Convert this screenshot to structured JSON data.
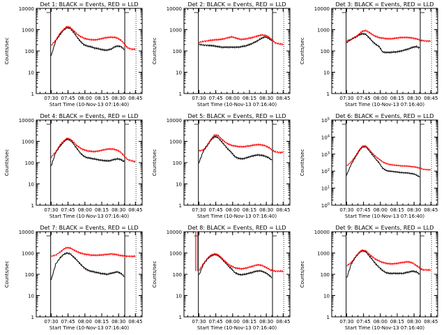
{
  "colors": {
    "events": "#000000",
    "lld": "#ff0000",
    "background": "#ffffff"
  },
  "chart_data": [
    {
      "type": "line",
      "title": "Det 1: BLACK = Events, RED = LLD",
      "xlabel": "Start Time (10-Nov-13 07:16:40)",
      "ylabel": "Counts/sec",
      "ylog": true,
      "ylim": [
        1,
        10000
      ],
      "y_tick_labels": [
        "1",
        "10",
        "100",
        "1000",
        "10000"
      ],
      "x_tick_labels": [
        "07:30",
        "07:45",
        "08:00",
        "08:15",
        "08:30",
        "08:45"
      ],
      "x": [
        "07:30",
        "07:34",
        "07:38",
        "07:41",
        "07:44",
        "07:47",
        "07:50",
        "07:53",
        "07:56",
        "07:59",
        "08:02",
        "08:05",
        "08:08",
        "08:11",
        "08:14",
        "08:17",
        "08:20",
        "08:23",
        "08:26",
        "08:29",
        "08:32",
        "08:35",
        "08:38",
        "08:42",
        "08:45"
      ],
      "series": [
        {
          "name": "Events",
          "values": [
            60,
            300,
            600,
            950,
            1250,
            1150,
            750,
            450,
            280,
            200,
            170,
            160,
            140,
            130,
            120,
            110,
            110,
            120,
            150,
            170,
            160,
            120,
            null,
            null,
            null
          ]
        },
        {
          "name": "LLD",
          "values": [
            180,
            320,
            700,
            1000,
            1400,
            1250,
            900,
            620,
            480,
            400,
            360,
            340,
            330,
            340,
            370,
            400,
            430,
            440,
            440,
            400,
            320,
            220,
            140,
            120,
            120
          ]
        }
      ]
    },
    {
      "type": "line",
      "title": "Det 2: BLACK = Events, RED = LLD",
      "xlabel": "Start Time (10-Nov-13 07:16:40)",
      "ylabel": "Counts/sec",
      "ylog": true,
      "ylim": [
        1,
        10000
      ],
      "y_tick_labels": [
        "1",
        "10",
        "100",
        "1000",
        "10000"
      ],
      "x_tick_labels": [
        "07:30",
        "07:45",
        "08:00",
        "08:15",
        "08:30",
        "08:45"
      ],
      "x": [
        "07:30",
        "07:34",
        "07:38",
        "07:41",
        "07:44",
        "07:47",
        "07:50",
        "07:53",
        "07:56",
        "07:59",
        "08:02",
        "08:05",
        "08:08",
        "08:11",
        "08:14",
        "08:17",
        "08:20",
        "08:23",
        "08:26",
        "08:29",
        "08:32",
        "08:35",
        "08:38",
        "08:42",
        "08:45"
      ],
      "series": [
        {
          "name": "Events",
          "values": [
            200,
            190,
            180,
            180,
            170,
            160,
            150,
            150,
            150,
            150,
            150,
            150,
            160,
            170,
            190,
            220,
            260,
            320,
            400,
            460,
            400,
            300,
            null,
            null,
            null
          ]
        },
        {
          "name": "LLD",
          "values": [
            250,
            280,
            300,
            320,
            330,
            340,
            350,
            380,
            420,
            460,
            420,
            370,
            350,
            360,
            390,
            420,
            460,
            520,
            560,
            540,
            460,
            330,
            240,
            210,
            210
          ]
        }
      ]
    },
    {
      "type": "line",
      "title": "Det 3: BLACK = Events, RED = LLD",
      "xlabel": "Start Time (10-Nov-13 07:16:40)",
      "ylabel": "Counts/sec",
      "ylog": true,
      "ylim": [
        1,
        10000
      ],
      "y_tick_labels": [
        "1",
        "10",
        "100",
        "1000",
        "10000"
      ],
      "x_tick_labels": [
        "07:30",
        "07:45",
        "08:00",
        "08:15",
        "08:30",
        "08:45"
      ],
      "x": [
        "07:30",
        "07:34",
        "07:38",
        "07:41",
        "07:44",
        "07:47",
        "07:50",
        "07:53",
        "07:56",
        "07:59",
        "08:02",
        "08:05",
        "08:08",
        "08:11",
        "08:14",
        "08:17",
        "08:20",
        "08:23",
        "08:26",
        "08:29",
        "08:32",
        "08:35",
        "08:38",
        "08:42",
        "08:45"
      ],
      "series": [
        {
          "name": "Events",
          "values": [
            250,
            350,
            450,
            560,
            650,
            600,
            420,
            280,
            200,
            160,
            90,
            85,
            85,
            88,
            90,
            95,
            105,
            115,
            130,
            150,
            160,
            140,
            null,
            null,
            null
          ]
        },
        {
          "name": "LLD",
          "values": [
            300,
            350,
            450,
            620,
            850,
            900,
            750,
            580,
            480,
            420,
            400,
            380,
            370,
            380,
            400,
            420,
            430,
            430,
            420,
            400,
            370,
            330,
            300,
            290,
            290
          ]
        }
      ]
    },
    {
      "type": "line",
      "title": "Det 4: BLACK = Events, RED = LLD",
      "xlabel": "Start Time (10-Nov-13 07:16:40)",
      "ylabel": "Counts/sec",
      "ylog": true,
      "ylim": [
        1,
        10000
      ],
      "y_tick_labels": [
        "1",
        "10",
        "100",
        "1000",
        "10000"
      ],
      "x_tick_labels": [
        "07:30",
        "07:45",
        "08:00",
        "08:15",
        "08:30",
        "08:45"
      ],
      "x": [
        "07:30",
        "07:34",
        "07:38",
        "07:41",
        "07:44",
        "07:47",
        "07:50",
        "07:53",
        "07:56",
        "07:59",
        "08:02",
        "08:05",
        "08:08",
        "08:11",
        "08:14",
        "08:17",
        "08:20",
        "08:23",
        "08:26",
        "08:29",
        "08:32",
        "08:35",
        "08:38",
        "08:42",
        "08:45"
      ],
      "series": [
        {
          "name": "Events",
          "values": [
            70,
            300,
            600,
            950,
            1250,
            1150,
            750,
            450,
            280,
            200,
            170,
            160,
            150,
            140,
            130,
            125,
            120,
            125,
            140,
            150,
            140,
            110,
            null,
            null,
            null
          ]
        },
        {
          "name": "LLD",
          "values": [
            180,
            320,
            700,
            1000,
            1400,
            1250,
            900,
            620,
            480,
            400,
            360,
            340,
            330,
            340,
            370,
            400,
            430,
            440,
            420,
            380,
            300,
            210,
            140,
            120,
            110
          ]
        }
      ]
    },
    {
      "type": "line",
      "title": "Det 5: BLACK = Events, RED = LLD",
      "xlabel": "Start Time (10-Nov-13 07:16:40)",
      "ylabel": "Counts/sec",
      "ylog": true,
      "ylim": [
        1,
        10000
      ],
      "y_tick_labels": [
        "1",
        "10",
        "100",
        "1000",
        "10000"
      ],
      "x_tick_labels": [
        "07:30",
        "07:45",
        "08:00",
        "08:15",
        "08:30",
        "08:45"
      ],
      "x": [
        "07:30",
        "07:34",
        "07:38",
        "07:41",
        "07:44",
        "07:47",
        "07:50",
        "07:53",
        "07:56",
        "07:59",
        "08:02",
        "08:05",
        "08:08",
        "08:11",
        "08:14",
        "08:17",
        "08:20",
        "08:23",
        "08:26",
        "08:29",
        "08:32",
        "08:35",
        "08:38",
        "08:42",
        "08:45"
      ],
      "series": [
        {
          "name": "Events",
          "values": [
            100,
            350,
            700,
            1200,
            1700,
            1500,
            1000,
            650,
            420,
            300,
            190,
            160,
            150,
            160,
            180,
            200,
            220,
            230,
            220,
            200,
            170,
            130,
            null,
            null,
            null
          ]
        },
        {
          "name": "LLD",
          "values": [
            350,
            400,
            750,
            1300,
            2000,
            1900,
            1300,
            950,
            750,
            650,
            600,
            570,
            550,
            570,
            600,
            640,
            680,
            700,
            680,
            620,
            520,
            400,
            320,
            300,
            300
          ]
        }
      ]
    },
    {
      "type": "line",
      "title": "Det 6: BLACK = Events, RED = LLD",
      "xlabel": "Start Time (10-Nov-13 07:16:40)",
      "ylabel": "Counts/sec",
      "ylog": true,
      "ylim": [
        1,
        100000
      ],
      "y_tick_labels": [
        "10^0",
        "10^1",
        "10^2",
        "10^3",
        "10^4",
        "10^5"
      ],
      "x_tick_labels": [
        "07:30",
        "07:45",
        "08:00",
        "08:15",
        "08:30",
        "08:45"
      ],
      "x": [
        "07:30",
        "07:34",
        "07:38",
        "07:41",
        "07:44",
        "07:47",
        "07:50",
        "07:53",
        "07:56",
        "07:59",
        "08:02",
        "08:05",
        "08:08",
        "08:11",
        "08:14",
        "08:17",
        "08:20",
        "08:23",
        "08:26",
        "08:29",
        "08:32",
        "08:35",
        "08:38",
        "08:42",
        "08:45"
      ],
      "series": [
        {
          "name": "Events",
          "values": [
            60,
            250,
            700,
            1500,
            2600,
            2700,
            1600,
            900,
            500,
            300,
            150,
            110,
            100,
            95,
            90,
            85,
            80,
            80,
            75,
            70,
            60,
            45,
            null,
            null,
            null
          ]
        },
        {
          "name": "LLD",
          "values": [
            200,
            350,
            800,
            1700,
            2900,
            3000,
            1900,
            1100,
            700,
            500,
            350,
            280,
            250,
            230,
            220,
            210,
            200,
            200,
            190,
            180,
            170,
            150,
            130,
            120,
            120
          ]
        }
      ]
    },
    {
      "type": "line",
      "title": "Det 7: BLACK = Events, RED = LLD",
      "xlabel": "Start Time (10-Nov-13 07:16:40)",
      "ylabel": "Counts/sec",
      "ylog": true,
      "ylim": [
        1,
        10000
      ],
      "y_tick_labels": [
        "1",
        "10",
        "100",
        "1000",
        "10000"
      ],
      "x_tick_labels": [
        "07:30",
        "07:45",
        "08:00",
        "08:15",
        "08:30",
        "08:45"
      ],
      "x": [
        "07:30",
        "07:34",
        "07:38",
        "07:41",
        "07:44",
        "07:47",
        "07:50",
        "07:53",
        "07:56",
        "07:59",
        "08:02",
        "08:05",
        "08:08",
        "08:11",
        "08:14",
        "08:17",
        "08:20",
        "08:23",
        "08:26",
        "08:29",
        "08:32",
        "08:35",
        "08:38",
        "08:42",
        "08:45"
      ],
      "series": [
        {
          "name": "Events",
          "values": [
            55,
            300,
            600,
            850,
            1000,
            900,
            650,
            450,
            300,
            210,
            160,
            140,
            130,
            120,
            110,
            105,
            100,
            110,
            120,
            130,
            110,
            80,
            null,
            null,
            null
          ]
        },
        {
          "name": "LLD",
          "values": [
            700,
            800,
            1100,
            1500,
            1800,
            1700,
            1400,
            1150,
            1000,
            900,
            850,
            800,
            780,
            790,
            800,
            830,
            860,
            900,
            880,
            820,
            760,
            720,
            700,
            700,
            700
          ]
        }
      ]
    },
    {
      "type": "line",
      "title": "Det 8: BLACK = Events, RED = LLD",
      "xlabel": "Start Time (10-Nov-13 07:16:40)",
      "ylabel": "Counts/sec",
      "ylog": true,
      "ylim": [
        1,
        10000
      ],
      "y_tick_labels": [
        "1",
        "10",
        "100",
        "1000",
        "10000"
      ],
      "x_tick_labels": [
        "07:30",
        "07:45",
        "08:00",
        "08:15",
        "08:30",
        "08:45"
      ],
      "x": [
        "07:30",
        "07:34",
        "07:38",
        "07:41",
        "07:44",
        "07:47",
        "07:50",
        "07:53",
        "07:56",
        "07:59",
        "08:02",
        "08:05",
        "08:08",
        "08:11",
        "08:14",
        "08:17",
        "08:20",
        "08:23",
        "08:26",
        "08:29",
        "08:32",
        "08:35",
        "08:38",
        "08:42",
        "08:45"
      ],
      "series": [
        {
          "name": "Events",
          "values": [
            90,
            300,
            550,
            750,
            850,
            780,
            550,
            380,
            250,
            180,
            120,
            100,
            95,
            100,
            110,
            120,
            135,
            145,
            140,
            120,
            95,
            70,
            null,
            null,
            null
          ]
        },
        {
          "name": "LLD",
          "values": [
            150,
            320,
            600,
            800,
            900,
            820,
            600,
            420,
            300,
            240,
            200,
            190,
            180,
            190,
            210,
            230,
            260,
            280,
            260,
            220,
            180,
            150,
            140,
            140,
            140
          ]
        }
      ],
      "annotations": [
        "LLD spike to 10000 at ~07:27"
      ]
    },
    {
      "type": "line",
      "title": "Det 9: BLACK = Events, RED = LLD",
      "xlabel": "Start Time (10-Nov-13 07:16:40)",
      "ylabel": "Counts/sec",
      "ylog": true,
      "ylim": [
        1,
        10000
      ],
      "y_tick_labels": [
        "1",
        "10",
        "100",
        "1000",
        "10000"
      ],
      "x_tick_labels": [
        "07:30",
        "07:45",
        "08:00",
        "08:15",
        "08:30",
        "08:45"
      ],
      "x": [
        "07:30",
        "07:34",
        "07:38",
        "07:41",
        "07:44",
        "07:47",
        "07:50",
        "07:53",
        "07:56",
        "07:59",
        "08:02",
        "08:05",
        "08:08",
        "08:11",
        "08:14",
        "08:17",
        "08:20",
        "08:23",
        "08:26",
        "08:29",
        "08:32",
        "08:35",
        "08:38",
        "08:42",
        "08:45"
      ],
      "series": [
        {
          "name": "Events",
          "values": [
            65,
            300,
            650,
            1000,
            1300,
            1150,
            750,
            480,
            300,
            210,
            150,
            120,
            110,
            110,
            110,
            110,
            110,
            120,
            130,
            140,
            130,
            100,
            null,
            null,
            null
          ]
        },
        {
          "name": "LLD",
          "values": [
            250,
            350,
            700,
            1050,
            1350,
            1250,
            900,
            650,
            500,
            420,
            360,
            330,
            310,
            310,
            320,
            340,
            360,
            380,
            380,
            330,
            260,
            200,
            160,
            160,
            160
          ]
        }
      ]
    }
  ]
}
